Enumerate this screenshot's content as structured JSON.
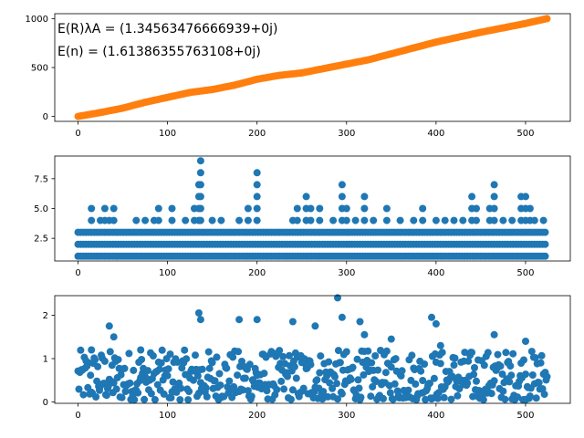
{
  "chart_data": [
    {
      "type": "scatter",
      "title": "",
      "xlabel": "",
      "ylabel": "",
      "xlim": [
        -26,
        550
      ],
      "ylim": [
        -50,
        1050
      ],
      "xticks": [
        "0",
        "100",
        "200",
        "300",
        "400",
        "500"
      ],
      "yticks": [
        "0",
        "500",
        "1000"
      ],
      "annotations": [
        "E(R)λA =  (1.34563476666939+0j)",
        "E(n) =  (1.61386355763108+0j)"
      ],
      "series": [
        {
          "color": "#ff7f0e",
          "x": [
            0,
            25,
            50,
            75,
            100,
            125,
            150,
            175,
            200,
            225,
            250,
            275,
            300,
            325,
            350,
            375,
            400,
            425,
            450,
            475,
            500,
            524
          ],
          "y": [
            0,
            40,
            85,
            145,
            195,
            245,
            275,
            320,
            380,
            420,
            445,
            490,
            535,
            580,
            640,
            700,
            760,
            810,
            860,
            905,
            950,
            1000
          ]
        }
      ],
      "grid": false
    },
    {
      "type": "scatter",
      "title": "",
      "xlabel": "",
      "ylabel": "",
      "xlim": [
        -26,
        550
      ],
      "ylim": [
        0.6,
        9.4
      ],
      "xticks": [
        "0",
        "100",
        "200",
        "300",
        "400",
        "500"
      ],
      "yticks": [
        "2.5",
        "5.0",
        "7.5"
      ],
      "series": [
        {
          "color": "#1f77b4",
          "baseline_levels": [
            1,
            2,
            3
          ],
          "x_range": [
            0,
            524
          ],
          "peaks": [
            {
              "x": 15,
              "y": 5
            },
            {
              "x": 25,
              "y": 4
            },
            {
              "x": 30,
              "y": 5
            },
            {
              "x": 35,
              "y": 4
            },
            {
              "x": 40,
              "y": 5
            },
            {
              "x": 65,
              "y": 4
            },
            {
              "x": 75,
              "y": 4
            },
            {
              "x": 85,
              "y": 4
            },
            {
              "x": 90,
              "y": 5
            },
            {
              "x": 105,
              "y": 5
            },
            {
              "x": 120,
              "y": 4
            },
            {
              "x": 130,
              "y": 5
            },
            {
              "x": 135,
              "y": 7
            },
            {
              "x": 137,
              "y": 9
            },
            {
              "x": 150,
              "y": 4
            },
            {
              "x": 160,
              "y": 4
            },
            {
              "x": 180,
              "y": 4
            },
            {
              "x": 190,
              "y": 5
            },
            {
              "x": 200,
              "y": 8
            },
            {
              "x": 240,
              "y": 4
            },
            {
              "x": 245,
              "y": 5
            },
            {
              "x": 255,
              "y": 6
            },
            {
              "x": 260,
              "y": 5
            },
            {
              "x": 270,
              "y": 5
            },
            {
              "x": 285,
              "y": 4
            },
            {
              "x": 295,
              "y": 7
            },
            {
              "x": 300,
              "y": 5
            },
            {
              "x": 310,
              "y": 4
            },
            {
              "x": 320,
              "y": 6
            },
            {
              "x": 330,
              "y": 4
            },
            {
              "x": 345,
              "y": 5
            },
            {
              "x": 360,
              "y": 4
            },
            {
              "x": 375,
              "y": 4
            },
            {
              "x": 385,
              "y": 5
            },
            {
              "x": 400,
              "y": 4
            },
            {
              "x": 410,
              "y": 4
            },
            {
              "x": 420,
              "y": 4
            },
            {
              "x": 430,
              "y": 4
            },
            {
              "x": 440,
              "y": 6
            },
            {
              "x": 445,
              "y": 5
            },
            {
              "x": 460,
              "y": 5
            },
            {
              "x": 465,
              "y": 7
            },
            {
              "x": 475,
              "y": 4
            },
            {
              "x": 485,
              "y": 4
            },
            {
              "x": 495,
              "y": 6
            },
            {
              "x": 500,
              "y": 6
            },
            {
              "x": 505,
              "y": 5
            },
            {
              "x": 510,
              "y": 4
            },
            {
              "x": 520,
              "y": 4
            }
          ]
        }
      ],
      "grid": false
    },
    {
      "type": "scatter",
      "title": "",
      "xlabel": "",
      "ylabel": "",
      "xlim": [
        -26,
        550
      ],
      "ylim": [
        -0.03,
        2.45
      ],
      "xticks": [
        "0",
        "100",
        "200",
        "300",
        "400",
        "500"
      ],
      "yticks": [
        "0",
        "1",
        "2"
      ],
      "series": [
        {
          "color": "#1f77b4",
          "x_range": [
            0,
            524
          ],
          "typical_range": [
            0.05,
            1.2
          ],
          "highlights": [
            {
              "x": 15,
              "y": 1.2
            },
            {
              "x": 35,
              "y": 1.75
            },
            {
              "x": 40,
              "y": 1.5
            },
            {
              "x": 70,
              "y": 1.2
            },
            {
              "x": 135,
              "y": 2.05
            },
            {
              "x": 137,
              "y": 1.9
            },
            {
              "x": 180,
              "y": 1.9
            },
            {
              "x": 200,
              "y": 1.9
            },
            {
              "x": 240,
              "y": 1.85
            },
            {
              "x": 265,
              "y": 1.75
            },
            {
              "x": 290,
              "y": 2.4
            },
            {
              "x": 295,
              "y": 1.95
            },
            {
              "x": 315,
              "y": 1.85
            },
            {
              "x": 320,
              "y": 1.55
            },
            {
              "x": 350,
              "y": 1.45
            },
            {
              "x": 395,
              "y": 1.95
            },
            {
              "x": 400,
              "y": 1.8
            },
            {
              "x": 405,
              "y": 1.3
            },
            {
              "x": 465,
              "y": 1.55
            },
            {
              "x": 500,
              "y": 1.4
            }
          ]
        }
      ],
      "grid": false
    }
  ]
}
